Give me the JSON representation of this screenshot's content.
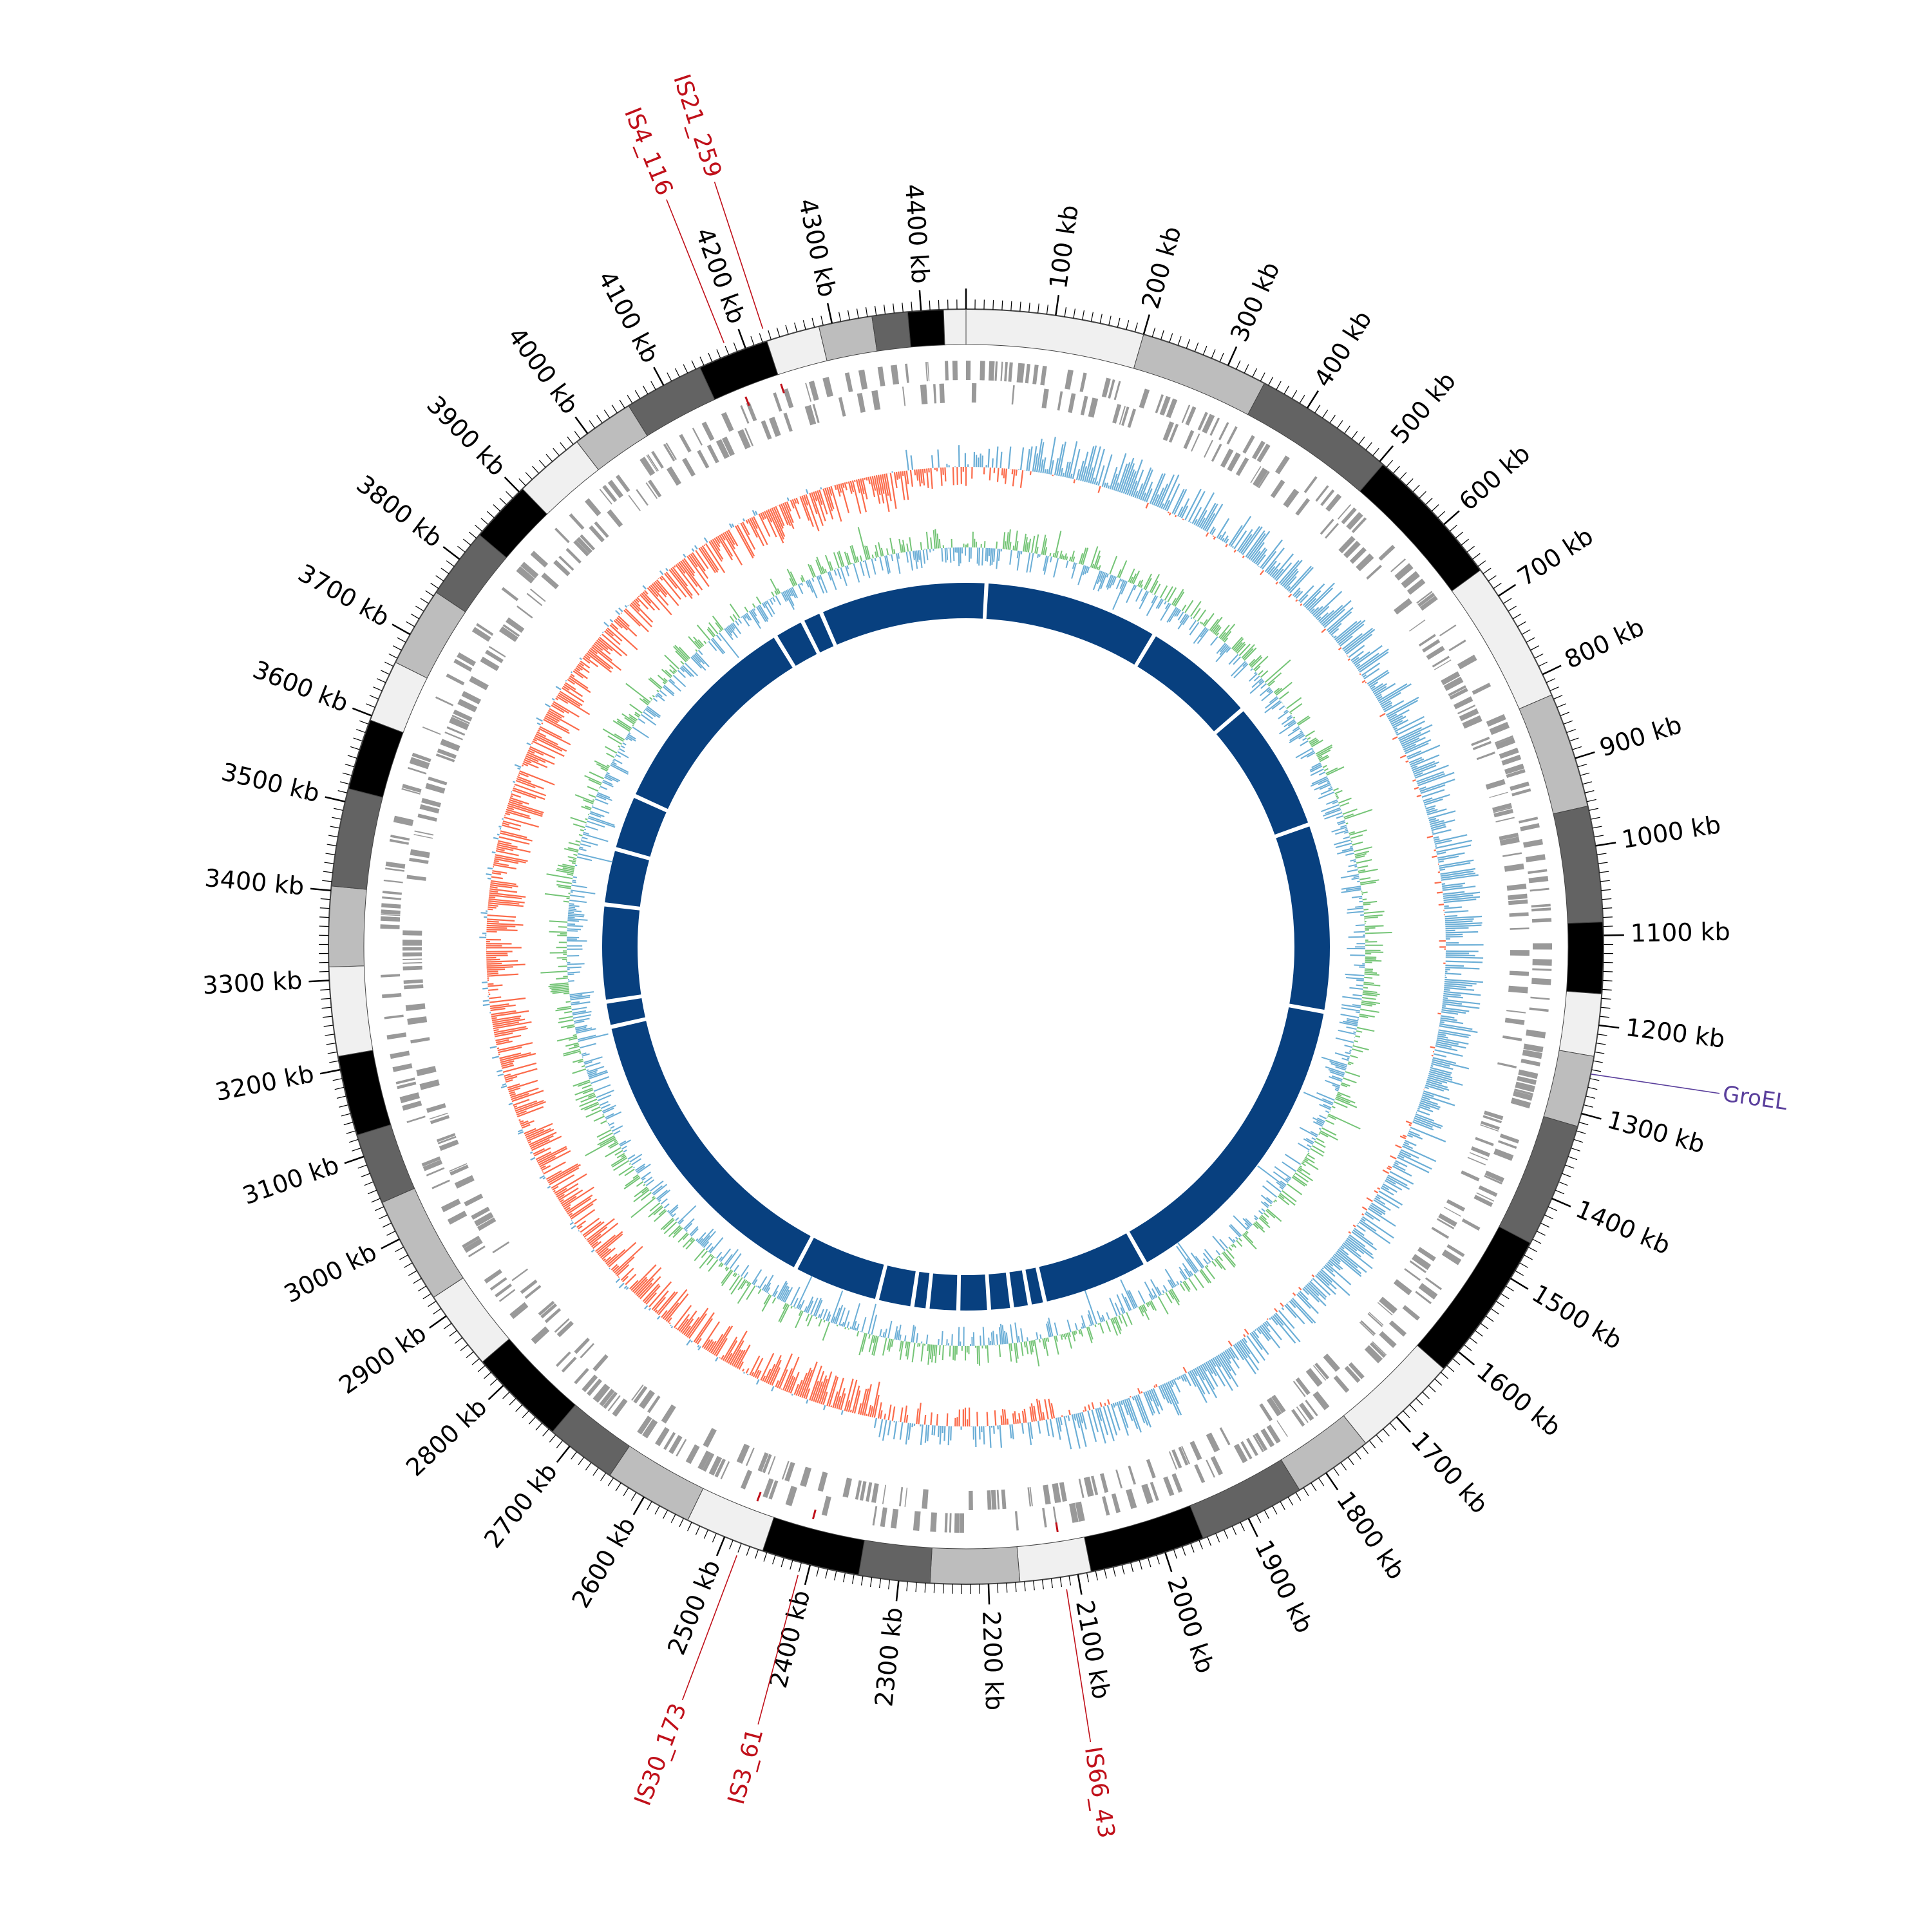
{
  "genome": {
    "length_kb": 4450,
    "scale_labels": [
      "100 kb",
      "200 kb",
      "300 kb",
      "400 kb",
      "500 kb",
      "600 kb",
      "700 kb",
      "800 kb",
      "900 kb",
      "1000 kb",
      "1100 kb",
      "1200 kb",
      "1300 kb",
      "1400 kb",
      "1500 kb",
      "1600 kb",
      "1700 kb",
      "1800 kb",
      "1900 kb",
      "2000 kb",
      "2100 kb",
      "2200 kb",
      "2300 kb",
      "2400 kb",
      "2500 kb",
      "2600 kb",
      "2700 kb",
      "2800 kb",
      "2900 kb",
      "3000 kb",
      "3100 kb",
      "3200 kb",
      "3300 kb",
      "3400 kb",
      "3500 kb",
      "3600 kb",
      "3700 kb",
      "3800 kb",
      "3900 kb",
      "4000 kb",
      "4100 kb",
      "4200 kb",
      "4300 kb",
      "4400 kb"
    ],
    "scale_positions_kb": [
      100,
      200,
      300,
      400,
      500,
      600,
      700,
      800,
      900,
      1000,
      1100,
      1200,
      1300,
      1400,
      1500,
      1600,
      1700,
      1800,
      1900,
      2000,
      2100,
      2200,
      2300,
      2400,
      2500,
      2600,
      2700,
      2800,
      2900,
      3000,
      3100,
      3200,
      3300,
      3400,
      3500,
      3600,
      3700,
      3800,
      3900,
      4000,
      4100,
      4200,
      4300,
      4400
    ]
  },
  "contig_colors": [
    "#f0f0f0",
    "#bdbdbd",
    "#636363",
    "#000000"
  ],
  "track_colors": {
    "genes": "#999999",
    "gc_skew_positive": "#6baed6",
    "gc_skew_negative": "#fb6a4a",
    "gc_content_positive": "#74c476",
    "gc_content_negative": "#6baed6",
    "inner_ring": "#08407f"
  },
  "is_elements": [
    {
      "name": "IS4_116",
      "position_kb": 4180
    },
    {
      "name": "IS21_259",
      "position_kb": 4225
    },
    {
      "name": "IS30_173",
      "position_kb": 2480
    },
    {
      "name": "IS3_61",
      "position_kb": 2410
    },
    {
      "name": "IS66_43",
      "position_kb": 2115
    }
  ],
  "genes_of_interest": [
    {
      "name": "GroEL",
      "position_kb": 1255
    }
  ],
  "label_colors": {
    "is_elements": "#c0101a",
    "gene": "#5a3f9c"
  },
  "inner_ring_gaps_kb": [
    40,
    385,
    610,
    870,
    1240,
    1860,
    2070,
    2100,
    2135,
    2180,
    2240,
    2300,
    2330,
    2400,
    2570,
    3180,
    3230,
    3420,
    3530,
    3640,
    4060,
    4120,
    4160
  ]
}
